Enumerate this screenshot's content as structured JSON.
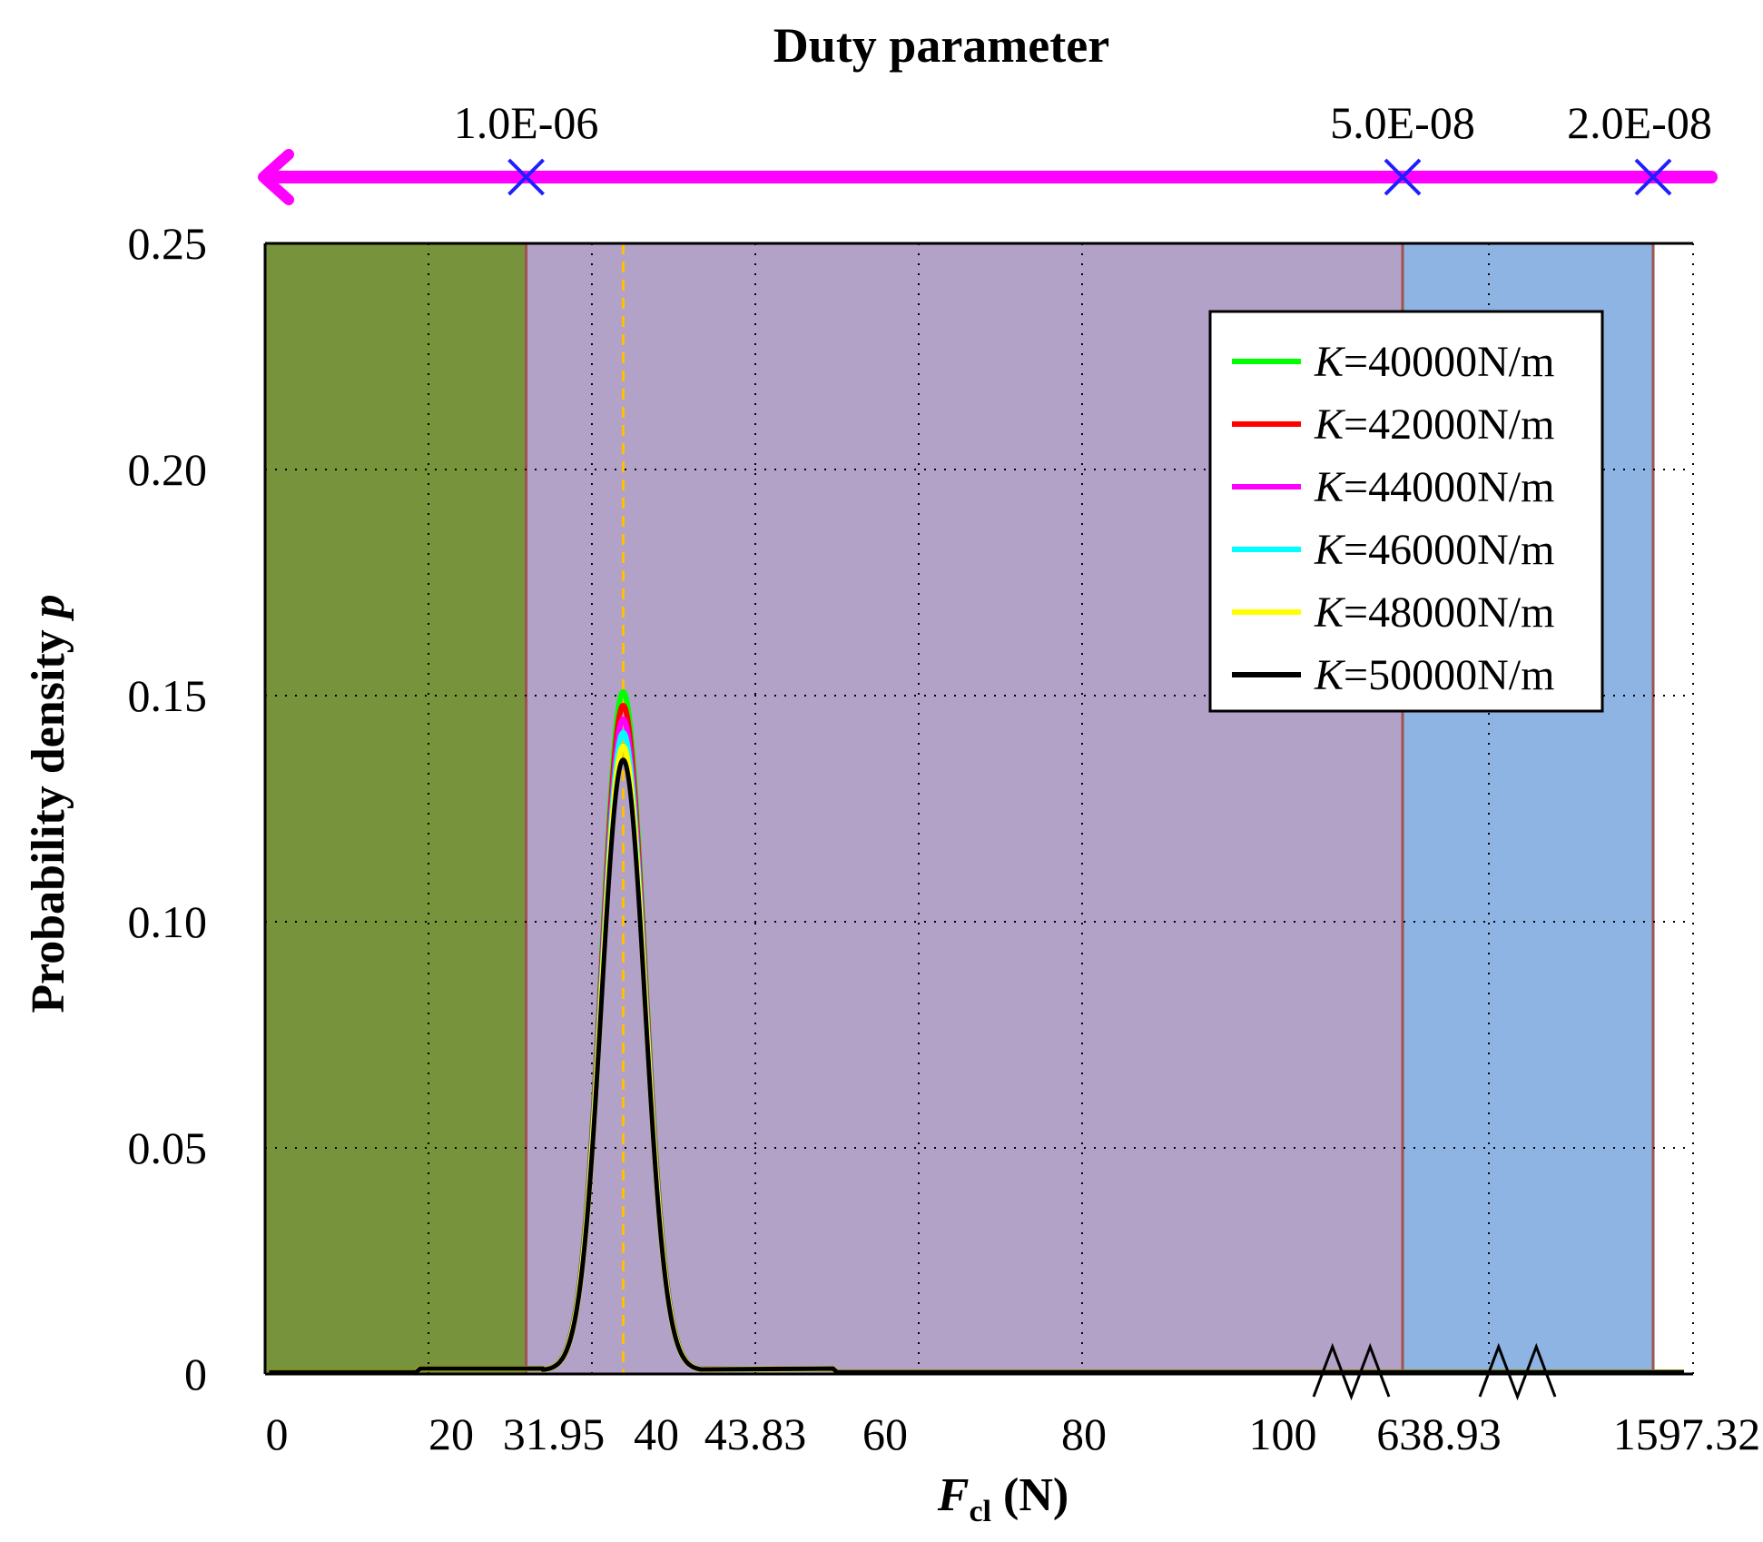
{
  "chart_data": {
    "type": "line",
    "top_axis": {
      "title": "Duty parameter",
      "markers": [
        {
          "label": "1.0E-06",
          "at_x": 31.95
        },
        {
          "label": "5.0E-08",
          "at_x": 638.93
        },
        {
          "label": "2.0E-08",
          "at_x": 1597.32
        }
      ],
      "arrow_color": "#ff00ff",
      "marker_color": "#1f1fff"
    },
    "xlabel_main": "F",
    "xlabel_sub": "cl",
    "xlabel_unit": " (N)",
    "ylabel_text": "Probability density ",
    "ylabel_symbol": "p",
    "x_ticks": [
      "0",
      "20",
      "31.95",
      "40",
      "43.83",
      "60",
      "80",
      "100",
      "638.93",
      "1597.32"
    ],
    "y_ticks": [
      "0",
      "0.05",
      "0.10",
      "0.15",
      "0.20",
      "0.25"
    ],
    "ylim": [
      0,
      0.25
    ],
    "x_axis_note": "broken axis: linear 0–100, then jumps to 638.93 and 1597.32",
    "regions": [
      {
        "from": 0,
        "to": 31.95,
        "color": "#77933c"
      },
      {
        "from": 31.95,
        "to": 638.93,
        "color": "#b3a2c7"
      },
      {
        "from": 638.93,
        "to": 1597.32,
        "color": "#8eb4e3"
      }
    ],
    "reference_line": {
      "x": 43.83,
      "color": "#ffc000",
      "style": "dashed"
    },
    "grid": true,
    "legend_position": "top-right",
    "series": [
      {
        "name_var": "K",
        "name_value": "=40000N/m",
        "color": "#00ff00",
        "mean": 43.83,
        "peak": 0.15
      },
      {
        "name_var": "K",
        "name_value": "=42000N/m",
        "color": "#ff0000",
        "mean": 43.83,
        "peak": 0.147
      },
      {
        "name_var": "K",
        "name_value": "=44000N/m",
        "color": "#ff00ff",
        "mean": 43.83,
        "peak": 0.144
      },
      {
        "name_var": "K",
        "name_value": "=46000N/m",
        "color": "#00ffff",
        "mean": 43.83,
        "peak": 0.141
      },
      {
        "name_var": "K",
        "name_value": "=48000N/m",
        "color": "#ffff00",
        "mean": 43.83,
        "peak": 0.138
      },
      {
        "name_var": "K",
        "name_value": "=50000N/m",
        "color": "#000000",
        "mean": 43.83,
        "peak": 0.135
      }
    ]
  }
}
